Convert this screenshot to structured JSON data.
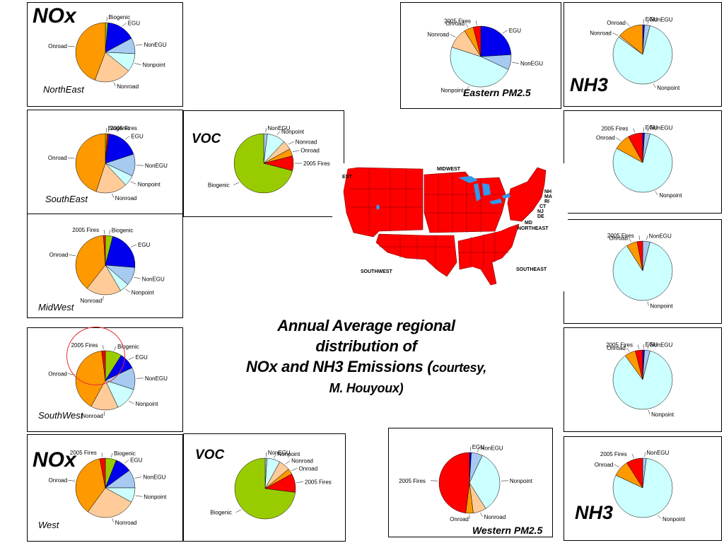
{
  "colors": {
    "Biogenic": "#99cc00",
    "2005 Fires": "#ff0000",
    "EGU": "#0000ee",
    "NonEGU": "#a6caf0",
    "Nonpoint": "#ccffff",
    "Nonroad": "#ffcc99",
    "Onroad": "#ff9900",
    "map_fill": "#ff0000",
    "water": "#3399ee",
    "highlight_circle": "#e53030"
  },
  "headings": {
    "nox_top": "NOx",
    "nox_bottom": "NOx",
    "voc_top": "VOC",
    "voc_bottom": "VOC",
    "nh3_top": "NH3",
    "nh3_bottom": "NH3"
  },
  "caption": {
    "line1": "Annual Average regional",
    "line2": "distribution of",
    "line3": "NOx and NH3 Emissions (",
    "line3_small": "courtesy,",
    "line4": "M. Houyoux)"
  },
  "map": {
    "labels": {
      "midwest": "MIDWEST",
      "northeast": "NORTHEAST",
      "southwest": "SOUTHWEST",
      "southeast": "SOUTHEAST",
      "west_partial": "EST"
    },
    "states": [
      "NH",
      "MA",
      "RI",
      "CT",
      "NJ",
      "DE",
      "MD"
    ]
  },
  "chart_data": [
    {
      "id": "nox-northeast",
      "type": "pie",
      "region_label": "NorthEast",
      "slices": [
        {
          "name": "Biogenic",
          "value": 1
        },
        {
          "name": "EGU",
          "value": 11
        },
        {
          "name": "NonEGU",
          "value": 6
        },
        {
          "name": "Nonpoint",
          "value": 7
        },
        {
          "name": "Nonroad",
          "value": 14
        },
        {
          "name": "Onroad",
          "value": 31
        }
      ]
    },
    {
      "id": "nox-southeast",
      "type": "pie",
      "region_label": "SouthEast",
      "slices": [
        {
          "name": "Biogenic",
          "value": 1
        },
        {
          "name": "2005 Fires",
          "value": 1
        },
        {
          "name": "EGU",
          "value": 18
        },
        {
          "name": "NonEGU",
          "value": 12
        },
        {
          "name": "Nonpoint",
          "value": 6
        },
        {
          "name": "Nonroad",
          "value": 17
        },
        {
          "name": "Onroad",
          "value": 45
        }
      ]
    },
    {
      "id": "nox-midwest",
      "type": "pie",
      "region_label": "MidWest",
      "slices": [
        {
          "name": "Biogenic",
          "value": 4
        },
        {
          "name": "EGU",
          "value": 22
        },
        {
          "name": "NonEGU",
          "value": 10
        },
        {
          "name": "Nonpoint",
          "value": 5
        },
        {
          "name": "Nonroad",
          "value": 19
        },
        {
          "name": "Onroad",
          "value": 38
        },
        {
          "name": "2005 Fires",
          "value": 1
        }
      ]
    },
    {
      "id": "nox-southwest",
      "type": "pie",
      "region_label": "SouthWest",
      "slices": [
        {
          "name": "Biogenic",
          "value": 9
        },
        {
          "name": "EGU",
          "value": 9
        },
        {
          "name": "NonEGU",
          "value": 12
        },
        {
          "name": "Nonpoint",
          "value": 13
        },
        {
          "name": "Nonroad",
          "value": 15
        },
        {
          "name": "Onroad",
          "value": 40
        },
        {
          "name": "2005 Fires",
          "value": 2
        }
      ]
    },
    {
      "id": "nox-west",
      "type": "pie",
      "region_label": "West",
      "slices": [
        {
          "name": "Biogenic",
          "value": 6
        },
        {
          "name": "EGU",
          "value": 9
        },
        {
          "name": "NonEGU",
          "value": 10
        },
        {
          "name": "Nonpoint",
          "value": 8
        },
        {
          "name": "Nonroad",
          "value": 27
        },
        {
          "name": "Onroad",
          "value": 37
        },
        {
          "name": "2005 Fires",
          "value": 3
        }
      ]
    },
    {
      "id": "voc-east",
      "type": "pie",
      "region_label": "",
      "slices": [
        {
          "name": "NonEGU",
          "value": 2
        },
        {
          "name": "Nonpoint",
          "value": 10
        },
        {
          "name": "Nonroad",
          "value": 5
        },
        {
          "name": "Onroad",
          "value": 4
        },
        {
          "name": "2005 Fires",
          "value": 8
        },
        {
          "name": "Biogenic",
          "value": 71
        }
      ]
    },
    {
      "id": "voc-west",
      "type": "pie",
      "region_label": "",
      "slices": [
        {
          "name": "NonEGU",
          "value": 1
        },
        {
          "name": "Nonpoint",
          "value": 7
        },
        {
          "name": "Nonroad",
          "value": 6
        },
        {
          "name": "Onroad",
          "value": 3
        },
        {
          "name": "2005 Fires",
          "value": 10
        },
        {
          "name": "Biogenic",
          "value": 73
        }
      ]
    },
    {
      "id": "pm25-east",
      "type": "pie",
      "region_label": "Eastern PM2.5",
      "slices": [
        {
          "name": "EGU",
          "value": 24
        },
        {
          "name": "NonEGU",
          "value": 8
        },
        {
          "name": "Nonpoint",
          "value": 48
        },
        {
          "name": "Nonroad",
          "value": 11
        },
        {
          "name": "Onroad",
          "value": 5
        },
        {
          "name": "2005 Fires",
          "value": 4
        }
      ]
    },
    {
      "id": "pm25-west",
      "type": "pie",
      "region_label": "Western PM2.5",
      "slices": [
        {
          "name": "EGU",
          "value": 1
        },
        {
          "name": "NonEGU",
          "value": 6
        },
        {
          "name": "Nonpoint",
          "value": 34
        },
        {
          "name": "Nonroad",
          "value": 7
        },
        {
          "name": "Onroad",
          "value": 4
        },
        {
          "name": "2005 Fires",
          "value": 48
        }
      ]
    },
    {
      "id": "nh3-1",
      "type": "pie",
      "region_label": "",
      "slices": [
        {
          "name": "EGU",
          "value": 1
        },
        {
          "name": "NonEGU",
          "value": 3
        },
        {
          "name": "Nonpoint",
          "value": 81
        },
        {
          "name": "Nonroad",
          "value": 1
        },
        {
          "name": "Onroad",
          "value": 14
        }
      ]
    },
    {
      "id": "nh3-2",
      "type": "pie",
      "region_label": "",
      "slices": [
        {
          "name": "EGU",
          "value": 1
        },
        {
          "name": "NonEGU",
          "value": 3
        },
        {
          "name": "Nonpoint",
          "value": 79
        },
        {
          "name": "Onroad",
          "value": 9
        },
        {
          "name": "2005 Fires",
          "value": 8
        }
      ]
    },
    {
      "id": "nh3-3",
      "type": "pie",
      "region_label": "",
      "slices": [
        {
          "name": "NonEGU",
          "value": 4
        },
        {
          "name": "Nonpoint",
          "value": 87
        },
        {
          "name": "Onroad",
          "value": 6
        },
        {
          "name": "2005 Fires",
          "value": 3
        }
      ]
    },
    {
      "id": "nh3-4",
      "type": "pie",
      "region_label": "",
      "slices": [
        {
          "name": "EGU",
          "value": 1
        },
        {
          "name": "NonEGU",
          "value": 3
        },
        {
          "name": "Nonpoint",
          "value": 86
        },
        {
          "name": "Onroad",
          "value": 6
        },
        {
          "name": "2005 Fires",
          "value": 4
        }
      ]
    },
    {
      "id": "nh3-5",
      "type": "pie",
      "region_label": "",
      "slices": [
        {
          "name": "NonEGU",
          "value": 2
        },
        {
          "name": "Nonpoint",
          "value": 80
        },
        {
          "name": "Onroad",
          "value": 9
        },
        {
          "name": "2005 Fires",
          "value": 9
        }
      ]
    }
  ]
}
